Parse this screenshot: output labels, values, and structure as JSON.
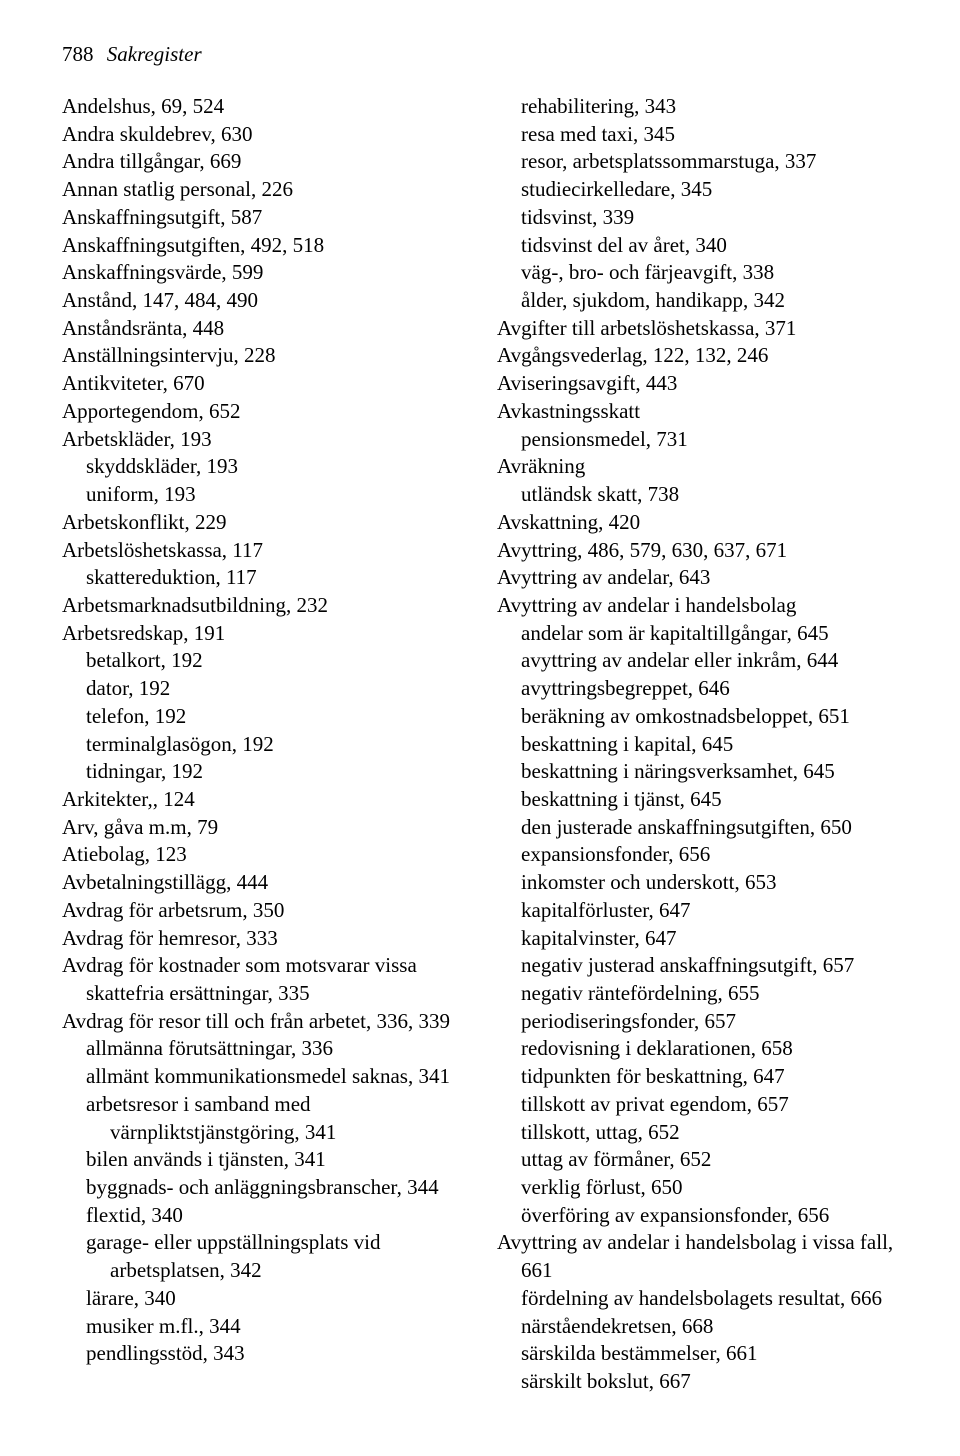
{
  "header": {
    "page_number": "788",
    "title": "Sakregister"
  },
  "left": [
    {
      "t": "entry",
      "v": "Andelshus, 69, 524"
    },
    {
      "t": "entry",
      "v": "Andra skuldebrev, 630"
    },
    {
      "t": "entry",
      "v": "Andra tillgångar, 669"
    },
    {
      "t": "entry",
      "v": "Annan statlig personal, 226"
    },
    {
      "t": "entry",
      "v": "Anskaffningsutgift, 587"
    },
    {
      "t": "entry",
      "v": "Anskaffningsutgiften, 492, 518"
    },
    {
      "t": "entry",
      "v": "Anskaffningsvärde, 599"
    },
    {
      "t": "entry",
      "v": "Anstånd, 147, 484, 490"
    },
    {
      "t": "entry",
      "v": "Anståndsränta, 448"
    },
    {
      "t": "entry",
      "v": "Anställningsintervju, 228"
    },
    {
      "t": "entry",
      "v": "Antikviteter, 670"
    },
    {
      "t": "entry",
      "v": "Apportegendom, 652"
    },
    {
      "t": "entry",
      "v": "Arbetskläder, 193"
    },
    {
      "t": "sub",
      "v": "skyddskläder, 193"
    },
    {
      "t": "sub",
      "v": "uniform, 193"
    },
    {
      "t": "entry",
      "v": "Arbetskonflikt, 229"
    },
    {
      "t": "entry",
      "v": "Arbetslöshetskassa, 117"
    },
    {
      "t": "sub",
      "v": "skattereduktion, 117"
    },
    {
      "t": "entry",
      "v": "Arbetsmarknadsutbildning, 232"
    },
    {
      "t": "entry",
      "v": "Arbetsredskap, 191"
    },
    {
      "t": "sub",
      "v": "betalkort, 192"
    },
    {
      "t": "sub",
      "v": "dator, 192"
    },
    {
      "t": "sub",
      "v": "telefon, 192"
    },
    {
      "t": "sub",
      "v": "terminalglasögon, 192"
    },
    {
      "t": "sub",
      "v": "tidningar, 192"
    },
    {
      "t": "entry",
      "v": "Arkitekter,, 124"
    },
    {
      "t": "entry",
      "v": "Arv, gåva m.m, 79"
    },
    {
      "t": "entry",
      "v": "Atiebolag, 123"
    },
    {
      "t": "entry",
      "v": "Avbetalningstillägg, 444"
    },
    {
      "t": "entry",
      "v": "Avdrag för arbetsrum, 350"
    },
    {
      "t": "entry",
      "v": "Avdrag för hemresor, 333"
    },
    {
      "t": "entry",
      "v": "Avdrag för kostnader som motsvarar vissa skattefria ersättningar, 335"
    },
    {
      "t": "entry",
      "v": "Avdrag för resor till och från arbetet, 336, 339"
    },
    {
      "t": "sub",
      "v": "allmänna förutsättningar, 336"
    },
    {
      "t": "sub",
      "v": "allmänt kommunikationsmedel saknas, 341"
    },
    {
      "t": "sub",
      "v": "arbetsresor i samband med värnpliktstjänstgöring, 341"
    },
    {
      "t": "sub",
      "v": "bilen används i tjänsten, 341"
    },
    {
      "t": "sub",
      "v": "byggnads- och anläggningsbranscher, 344"
    },
    {
      "t": "sub",
      "v": "flextid, 340"
    },
    {
      "t": "sub",
      "v": "garage- eller uppställningsplats vid arbetsplatsen, 342"
    },
    {
      "t": "sub",
      "v": "lärare, 340"
    },
    {
      "t": "sub",
      "v": "musiker m.fl., 344"
    },
    {
      "t": "sub",
      "v": "pendlingsstöd, 343"
    }
  ],
  "right": [
    {
      "t": "sub",
      "v": "rehabilitering, 343"
    },
    {
      "t": "sub",
      "v": "resa med taxi, 345"
    },
    {
      "t": "sub",
      "v": "resor, arbetsplatssommarstuga, 337"
    },
    {
      "t": "sub",
      "v": "studiecirkelledare, 345"
    },
    {
      "t": "sub",
      "v": "tidsvinst, 339"
    },
    {
      "t": "sub",
      "v": "tidsvinst del av året, 340"
    },
    {
      "t": "sub",
      "v": "väg-, bro- och färjeavgift, 338"
    },
    {
      "t": "sub",
      "v": "ålder, sjukdom, handikapp, 342"
    },
    {
      "t": "entry",
      "v": "Avgifter till arbetslöshetskassa, 371"
    },
    {
      "t": "entry",
      "v": "Avgångsvederlag, 122, 132, 246"
    },
    {
      "t": "entry",
      "v": "Aviseringsavgift, 443"
    },
    {
      "t": "entry",
      "v": "Avkastningsskatt"
    },
    {
      "t": "sub",
      "v": "pensionsmedel, 731"
    },
    {
      "t": "entry",
      "v": "Avräkning"
    },
    {
      "t": "sub",
      "v": "utländsk skatt, 738"
    },
    {
      "t": "entry",
      "v": "Avskattning, 420"
    },
    {
      "t": "entry",
      "v": "Avyttring, 486, 579, 630, 637, 671"
    },
    {
      "t": "entry",
      "v": "Avyttring av andelar, 643"
    },
    {
      "t": "entry",
      "v": "Avyttring av andelar i handelsbolag"
    },
    {
      "t": "sub",
      "v": "andelar som är kapitaltillgångar, 645"
    },
    {
      "t": "sub",
      "v": "avyttring av andelar eller inkråm, 644"
    },
    {
      "t": "sub",
      "v": "avyttringsbegreppet, 646"
    },
    {
      "t": "sub",
      "v": "beräkning av omkostnadsbeloppet, 651"
    },
    {
      "t": "sub",
      "v": "beskattning i kapital, 645"
    },
    {
      "t": "sub",
      "v": "beskattning i näringsverksamhet, 645"
    },
    {
      "t": "sub",
      "v": "beskattning i tjänst, 645"
    },
    {
      "t": "sub",
      "v": "den justerade anskaffningsutgiften, 650"
    },
    {
      "t": "sub",
      "v": "expansionsfonder, 656"
    },
    {
      "t": "sub",
      "v": "inkomster och underskott, 653"
    },
    {
      "t": "sub",
      "v": "kapitalförluster, 647"
    },
    {
      "t": "sub",
      "v": "kapitalvinster, 647"
    },
    {
      "t": "sub",
      "v": "negativ justerad anskaffningsutgift, 657"
    },
    {
      "t": "sub",
      "v": "negativ räntefördelning, 655"
    },
    {
      "t": "sub",
      "v": "periodiseringsfonder, 657"
    },
    {
      "t": "sub",
      "v": "redovisning i deklarationen, 658"
    },
    {
      "t": "sub",
      "v": "tidpunkten för beskattning, 647"
    },
    {
      "t": "sub",
      "v": "tillskott av privat egendom, 657"
    },
    {
      "t": "sub",
      "v": "tillskott, uttag, 652"
    },
    {
      "t": "sub",
      "v": "uttag av förmåner, 652"
    },
    {
      "t": "sub",
      "v": "verklig förlust, 650"
    },
    {
      "t": "sub",
      "v": "överföring av expansionsfonder, 656"
    },
    {
      "t": "entry",
      "v": "Avyttring av andelar i handelsbolag i vissa fall, 661"
    },
    {
      "t": "sub",
      "v": "fördelning av handelsbolagets resultat, 666"
    },
    {
      "t": "sub",
      "v": "närståendekretsen, 668"
    },
    {
      "t": "sub",
      "v": "särskilda bestämmelser, 661"
    },
    {
      "t": "sub",
      "v": "särskilt bokslut, 667"
    }
  ]
}
